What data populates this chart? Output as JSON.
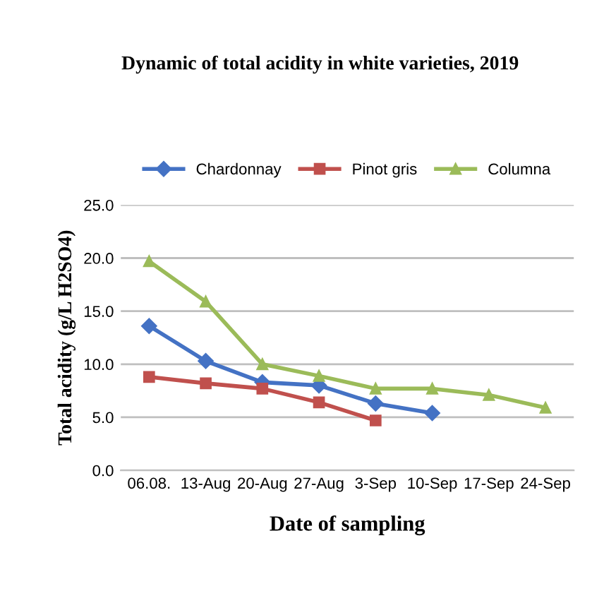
{
  "chart_data": {
    "type": "line",
    "title": "Dynamic of total acidity in white varieties, 2019",
    "xlabel": "Date of sampling",
    "ylabel": "Total acidity (g/L H2SO4)",
    "categories": [
      "06.08.",
      "13-Aug",
      "20-Aug",
      "27-Aug",
      "3-Sep",
      "10-Sep",
      "17-Sep",
      "24-Sep"
    ],
    "series": [
      {
        "name": "Chardonnay",
        "color": "#4472c4",
        "marker": "diamond",
        "values": [
          13.6,
          10.3,
          8.3,
          8.0,
          6.3,
          5.4,
          null,
          null
        ]
      },
      {
        "name": "Pinot gris",
        "color": "#c0504d",
        "marker": "square",
        "values": [
          8.8,
          8.2,
          7.7,
          6.4,
          4.7,
          null,
          null,
          null
        ]
      },
      {
        "name": "Columna",
        "color": "#9bbb59",
        "marker": "triangle",
        "values": [
          19.7,
          15.9,
          10.0,
          8.9,
          7.7,
          7.7,
          7.1,
          5.9
        ]
      }
    ],
    "ylim": [
      0,
      25
    ],
    "yticks": [
      {
        "value": 0,
        "label": "0.0"
      },
      {
        "value": 5,
        "label": "5.0"
      },
      {
        "value": 10,
        "label": "10.0"
      },
      {
        "value": 15,
        "label": "15.0"
      },
      {
        "value": 20,
        "label": "20.0"
      },
      {
        "value": 25,
        "label": "25.0"
      }
    ],
    "grid": "y",
    "legend": "top",
    "line_style": "solid"
  }
}
